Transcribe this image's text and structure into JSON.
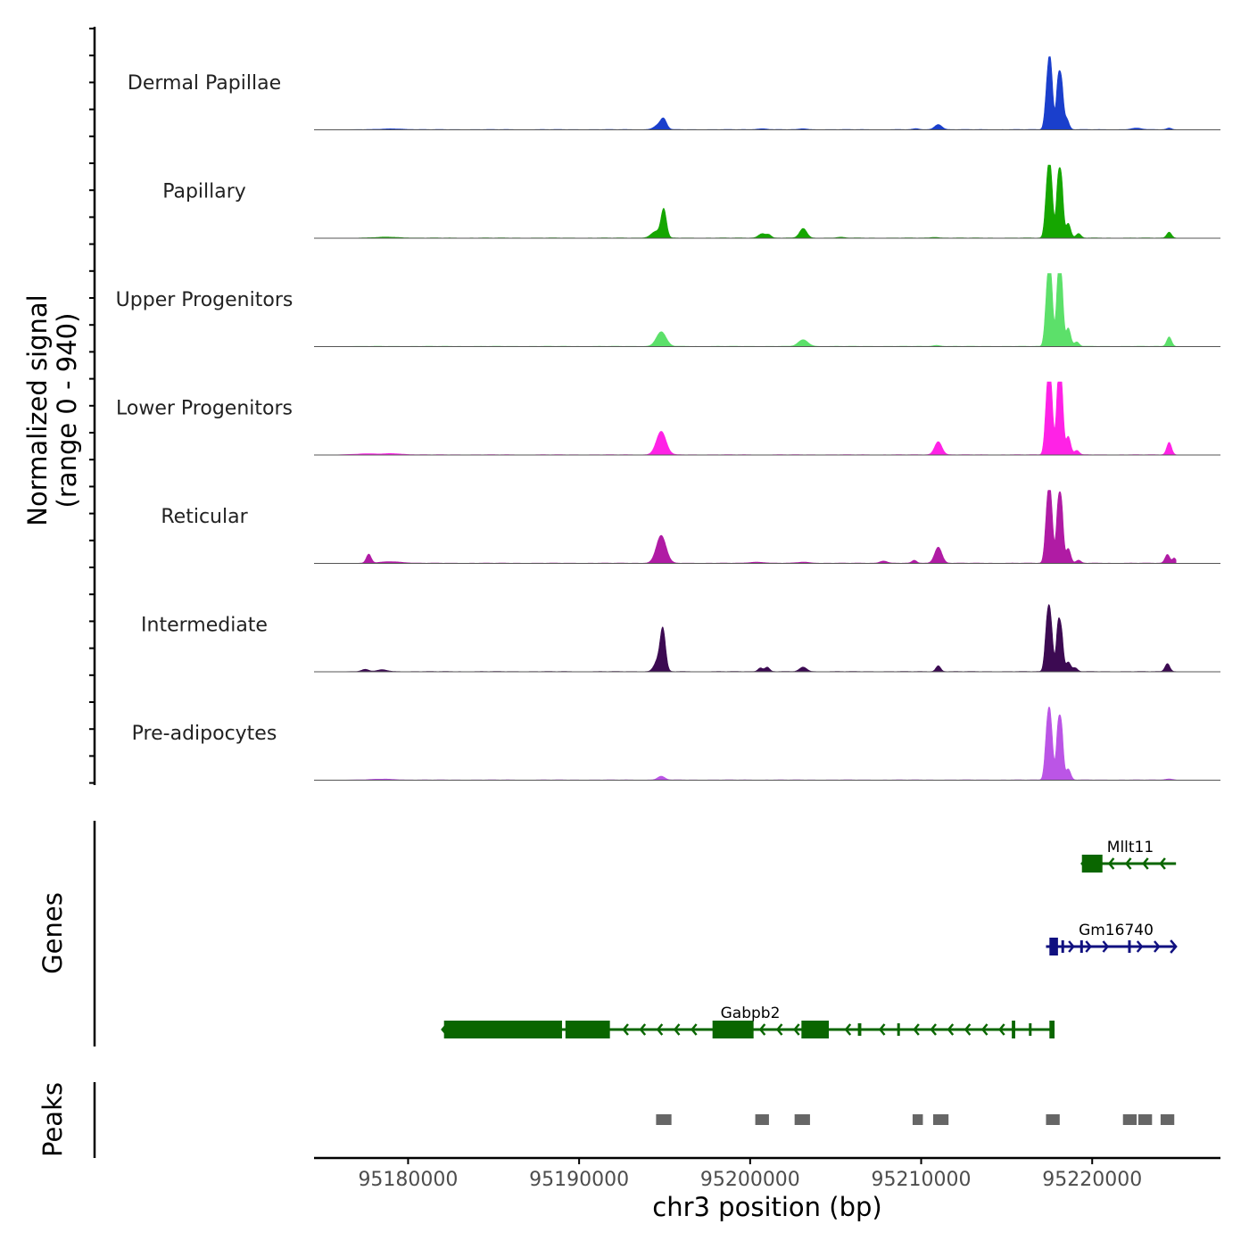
{
  "chart_data": {
    "type": "area",
    "title": "",
    "ylabel": "Normalized signal",
    "ylabel_range": "(range 0 - 940)",
    "ylim": [
      0,
      940
    ],
    "xlabel": "chr3 position (bp)",
    "xlim": [
      95174500,
      95227500
    ],
    "xticks": [
      95180000,
      95190000,
      95200000,
      95210000,
      95220000
    ],
    "xtick_labels": [
      "95180000",
      "95190000",
      "95200000",
      "95210000",
      "95220000"
    ],
    "panel_labels": {
      "genes": "Genes",
      "peaks": "Peaks"
    },
    "tracks": [
      {
        "name": "Dermal Papillae",
        "color": "#1a3fcc",
        "peaks": [
          [
            95179100,
            10,
            900
          ],
          [
            95194700,
            70,
            400
          ],
          [
            95194950,
            110,
            240
          ],
          [
            95200700,
            12,
            400
          ],
          [
            95203100,
            12,
            300
          ],
          [
            95209700,
            12,
            250
          ],
          [
            95211000,
            70,
            300
          ],
          [
            95217350,
            380,
            180
          ],
          [
            95217550,
            900,
            200
          ],
          [
            95218000,
            600,
            150
          ],
          [
            95218200,
            620,
            160
          ],
          [
            95218500,
            150,
            200
          ],
          [
            95222600,
            20,
            400
          ],
          [
            95224500,
            22,
            200
          ]
        ]
      },
      {
        "name": "Papillary",
        "color": "#15a600",
        "peaks": [
          [
            95178800,
            12,
            900
          ],
          [
            95194500,
            90,
            400
          ],
          [
            95194950,
            380,
            220
          ],
          [
            95200700,
            60,
            300
          ],
          [
            95201100,
            40,
            200
          ],
          [
            95203100,
            130,
            300
          ],
          [
            95205300,
            10,
            300
          ],
          [
            95210800,
            10,
            300
          ],
          [
            95217350,
            480,
            180
          ],
          [
            95217550,
            900,
            200
          ],
          [
            95218000,
            700,
            150
          ],
          [
            95218200,
            760,
            160
          ],
          [
            95218600,
            200,
            200
          ],
          [
            95219200,
            60,
            200
          ],
          [
            95224500,
            80,
            200
          ]
        ]
      },
      {
        "name": "Upper Progenitors",
        "color": "#5ce06a",
        "peaks": [
          [
            95194800,
            200,
            400
          ],
          [
            95203100,
            90,
            400
          ],
          [
            95210900,
            14,
            300
          ],
          [
            95217350,
            500,
            180
          ],
          [
            95217550,
            1000,
            200
          ],
          [
            95218000,
            820,
            150
          ],
          [
            95218200,
            870,
            160
          ],
          [
            95218600,
            250,
            200
          ],
          [
            95219100,
            60,
            200
          ],
          [
            95224500,
            130,
            200
          ]
        ]
      },
      {
        "name": "Lower Progenitors",
        "color": "#ff22e6",
        "peaks": [
          [
            95177500,
            14,
            600
          ],
          [
            95179000,
            16,
            900
          ],
          [
            95194800,
            320,
            400
          ],
          [
            95211000,
            180,
            300
          ],
          [
            95217350,
            560,
            180
          ],
          [
            95217550,
            1000,
            200
          ],
          [
            95218000,
            860,
            150
          ],
          [
            95218200,
            920,
            160
          ],
          [
            95218600,
            250,
            200
          ],
          [
            95219100,
            60,
            200
          ],
          [
            95224500,
            170,
            200
          ]
        ]
      },
      {
        "name": "Reticular",
        "color": "#b01ba4",
        "peaks": [
          [
            95177700,
            120,
            200
          ],
          [
            95179000,
            20,
            900
          ],
          [
            95194800,
            380,
            400
          ],
          [
            95200400,
            14,
            600
          ],
          [
            95203100,
            14,
            500
          ],
          [
            95207800,
            30,
            300
          ],
          [
            95209600,
            40,
            200
          ],
          [
            95211000,
            220,
            300
          ],
          [
            95217350,
            500,
            180
          ],
          [
            95217550,
            900,
            200
          ],
          [
            95218000,
            700,
            150
          ],
          [
            95218200,
            780,
            160
          ],
          [
            95218600,
            200,
            200
          ],
          [
            95219200,
            40,
            200
          ],
          [
            95224400,
            120,
            200
          ],
          [
            95224800,
            70,
            150
          ]
        ]
      },
      {
        "name": "Intermediate",
        "color": "#3c0a52",
        "peaks": [
          [
            95177500,
            30,
            300
          ],
          [
            95178500,
            25,
            400
          ],
          [
            95194900,
            550,
            220
          ],
          [
            95194600,
            150,
            300
          ],
          [
            95200600,
            50,
            200
          ],
          [
            95201000,
            60,
            200
          ],
          [
            95203100,
            60,
            300
          ],
          [
            95211000,
            80,
            200
          ],
          [
            95217350,
            500,
            180
          ],
          [
            95217550,
            700,
            200
          ],
          [
            95218000,
            580,
            150
          ],
          [
            95218200,
            520,
            160
          ],
          [
            95218600,
            130,
            200
          ],
          [
            95219000,
            50,
            200
          ],
          [
            95224400,
            110,
            200
          ]
        ]
      },
      {
        "name": "Pre-adipocytes",
        "color": "#bb55e6",
        "peaks": [
          [
            95178500,
            12,
            900
          ],
          [
            95194800,
            50,
            300
          ],
          [
            95217350,
            500,
            180
          ],
          [
            95217550,
            800,
            200
          ],
          [
            95218000,
            650,
            150
          ],
          [
            95218200,
            700,
            160
          ],
          [
            95218600,
            150,
            200
          ],
          [
            95224500,
            14,
            300
          ]
        ]
      }
    ],
    "genes": [
      {
        "name": "Mllt11",
        "strand": "-",
        "color": "#0a6600",
        "start": 95219400,
        "end": 95224900,
        "exons": [
          [
            95219400,
            95220600,
            "cds"
          ]
        ]
      },
      {
        "name": "Gm16740",
        "strand": "+",
        "color": "#101080",
        "start": 95217300,
        "end": 95224900,
        "exons": [
          [
            95217500,
            95218000,
            "cds"
          ],
          [
            95218200,
            95218300,
            "thin"
          ],
          [
            95219300,
            95219400,
            "thin"
          ],
          [
            95222100,
            95222200,
            "thin"
          ]
        ]
      },
      {
        "name": "Gabpb2",
        "strand": "-",
        "color": "#0a6600",
        "start": 95182000,
        "end": 95217800,
        "exons": [
          [
            95182100,
            95189000,
            "cds"
          ],
          [
            95189200,
            95191800,
            "cds"
          ],
          [
            95197800,
            95200200,
            "cds"
          ],
          [
            95203000,
            95204600,
            "cds"
          ],
          [
            95206300,
            95206500,
            "thin"
          ],
          [
            95208600,
            95208700,
            "thin"
          ],
          [
            95215300,
            95215500,
            "cds"
          ],
          [
            95216300,
            95216400,
            "thin"
          ],
          [
            95217500,
            95217800,
            "cds"
          ]
        ]
      }
    ],
    "peak_regions": [
      [
        95194500,
        95195400
      ],
      [
        95200300,
        95201100
      ],
      [
        95202600,
        95203500
      ],
      [
        95209500,
        95210100
      ],
      [
        95210700,
        95211600
      ],
      [
        95217300,
        95218100
      ],
      [
        95221800,
        95222600
      ],
      [
        95222700,
        95223500
      ],
      [
        95224000,
        95224800
      ]
    ]
  }
}
